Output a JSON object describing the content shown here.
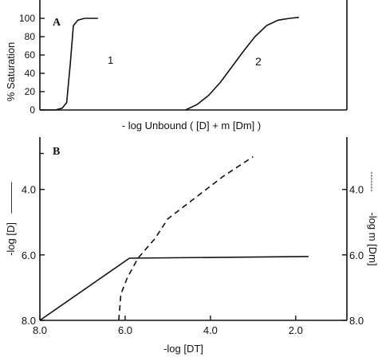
{
  "chart_data": [
    {
      "panel": "A",
      "type": "line",
      "ylabel": "% Saturation",
      "xlabel": "- log Unbound ( [D] + m [Dm] )",
      "yticks": [
        "0",
        "20",
        "40",
        "60",
        "80",
        "100"
      ],
      "ylim": [
        0,
        120
      ],
      "series": [
        {
          "name": "1",
          "points": [
            [
              0.0,
              0
            ],
            [
              0.35,
              0
            ],
            [
              0.5,
              2
            ],
            [
              0.6,
              8
            ],
            [
              0.68,
              50
            ],
            [
              0.75,
              92
            ],
            [
              0.85,
              98
            ],
            [
              1.0,
              100
            ],
            [
              1.3,
              100
            ]
          ]
        },
        {
          "name": "2",
          "points": [
            [
              6.3,
              0
            ],
            [
              6.8,
              6
            ],
            [
              7.3,
              16
            ],
            [
              7.8,
              30
            ],
            [
              8.3,
              47
            ],
            [
              8.8,
              64
            ],
            [
              9.3,
              80
            ],
            [
              9.8,
              92
            ],
            [
              10.3,
              98
            ],
            [
              10.8,
              100
            ],
            [
              11.2,
              101
            ]
          ]
        }
      ]
    },
    {
      "panel": "B",
      "type": "line",
      "xlabel": "-log [DT]",
      "ylabel_left": "-log [D]",
      "ylabel_right": "-log m [Dm]",
      "xticks": [
        "8.0",
        "6.0",
        "4.0",
        "2.0"
      ],
      "yticks_left": [
        "8.0",
        "6.0",
        "4.0"
      ],
      "yticks_right": [
        "8.0",
        "6.0",
        "4.0"
      ],
      "xlim": [
        8.0,
        0.8
      ],
      "ylim": [
        8.0,
        2.4
      ],
      "series": [
        {
          "name": "-log [D]",
          "style": "solid",
          "points": [
            [
              8.0,
              8.0
            ],
            [
              5.9,
              6.1
            ],
            [
              1.7,
              6.05
            ]
          ]
        },
        {
          "name": "-log m [Dm]",
          "style": "dashed",
          "points": [
            [
              6.15,
              8.0
            ],
            [
              6.1,
              7.2
            ],
            [
              5.95,
              6.7
            ],
            [
              5.7,
              6.1
            ],
            [
              5.3,
              5.5
            ],
            [
              5.0,
              4.9
            ],
            [
              4.4,
              4.3
            ],
            [
              3.7,
              3.6
            ],
            [
              3.0,
              3.0
            ]
          ]
        }
      ]
    }
  ],
  "panel_labels": {
    "a": "A",
    "b": "B"
  },
  "curve_labels": {
    "c1": "1",
    "c2": "2"
  },
  "dash_symbol": "-------",
  "solid_symbol": "———"
}
